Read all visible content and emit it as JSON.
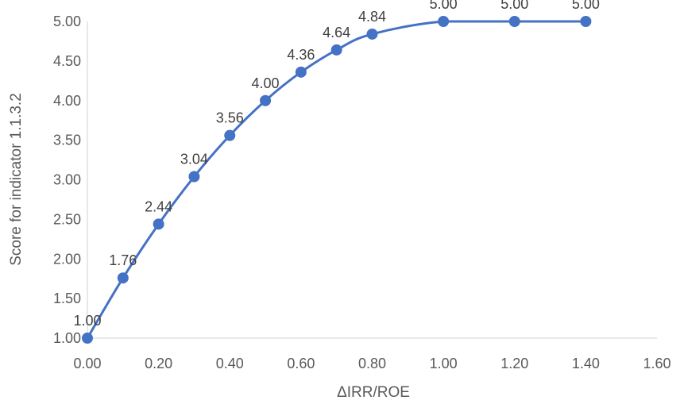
{
  "chart_data": {
    "type": "scatter",
    "title": "",
    "xlabel": "ΔIRR/ROE",
    "ylabel": "Score for indicator 1.1.3.2",
    "xlim": [
      0,
      1.6
    ],
    "ylim": [
      1,
      5
    ],
    "x_ticks": [
      "0.00",
      "0.20",
      "0.40",
      "0.60",
      "0.80",
      "1.00",
      "1.20",
      "1.40",
      "1.60"
    ],
    "y_ticks": [
      "1.00",
      "1.50",
      "2.00",
      "2.50",
      "3.00",
      "3.50",
      "4.00",
      "4.50",
      "5.00"
    ],
    "grid": false,
    "legend": "none",
    "series": [
      {
        "x": [
          0.0,
          0.1,
          0.2,
          0.3,
          0.4,
          0.5,
          0.6,
          0.7,
          0.8,
          1.0,
          1.2,
          1.4
        ],
        "values": [
          1.0,
          1.76,
          2.44,
          3.04,
          3.56,
          4.0,
          4.36,
          4.64,
          4.84,
          5.0,
          5.0,
          5.0
        ],
        "labels": [
          "1.00",
          "1.76",
          "2.44",
          "3.04",
          "3.56",
          "4.00",
          "4.36",
          "4.64",
          "4.84",
          "5.00",
          "5.00",
          "5.00"
        ],
        "line": "smooth",
        "marker": "circle"
      }
    ],
    "colors": {
      "series": "#4472C4",
      "axis": "#D9D9D9",
      "text": "#595959"
    }
  }
}
